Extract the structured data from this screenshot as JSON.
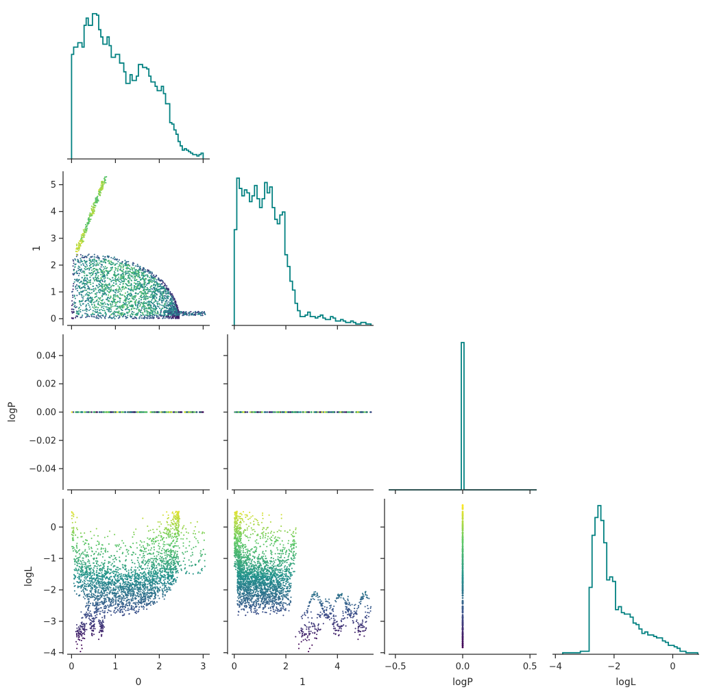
{
  "colors": {
    "histogram": "#008080",
    "axis": "#262626",
    "viridis": [
      "#440154",
      "#3b528b",
      "#21918c",
      "#5ec962",
      "#fde725"
    ]
  },
  "chart_data": [
    {
      "id": "hist-0",
      "type": "histogram",
      "variable": "0",
      "xlim": [
        -0.1,
        3.15
      ],
      "xticks": [
        0,
        1,
        2,
        3
      ],
      "bin_edges": [
        0.0,
        3.0
      ],
      "counts": [
        0.72,
        0.77,
        0.77,
        0.8,
        0.8,
        0.77,
        0.92,
        0.97,
        0.92,
        0.92,
        1.0,
        1.0,
        0.99,
        0.89,
        0.84,
        0.79,
        0.79,
        0.84,
        0.78,
        0.7,
        0.7,
        0.72,
        0.72,
        0.66,
        0.66,
        0.6,
        0.52,
        0.52,
        0.58,
        0.54,
        0.54,
        0.57,
        0.65,
        0.65,
        0.63,
        0.63,
        0.62,
        0.57,
        0.53,
        0.53,
        0.5,
        0.47,
        0.47,
        0.5,
        0.45,
        0.38,
        0.38,
        0.25,
        0.24,
        0.2,
        0.17,
        0.12,
        0.09,
        0.06,
        0.07,
        0.06,
        0.05,
        0.04,
        0.03,
        0.03,
        0.02,
        0.03,
        0.04
      ]
    },
    {
      "id": "scatter-1-vs-0",
      "type": "scatter",
      "x_variable": "0",
      "y_variable": "1",
      "xlim": [
        -0.1,
        3.15
      ],
      "ylim": [
        -0.25,
        5.5
      ],
      "xticks": [
        0,
        1,
        2,
        3
      ],
      "yticks": [
        0,
        1,
        2,
        3,
        4,
        5
      ],
      "ytick_labels": [
        "0",
        "1",
        "2",
        "3",
        "4",
        "5"
      ],
      "ylabel": "1",
      "points_estimated": 2400
    },
    {
      "id": "hist-1",
      "type": "histogram",
      "variable": "1",
      "xlim": [
        -0.1,
        5.4
      ],
      "xticks": [
        0,
        2,
        4
      ],
      "bin_edges": [
        0.0,
        5.3
      ],
      "counts": [
        0.65,
        1.0,
        0.93,
        0.88,
        0.92,
        0.9,
        0.84,
        0.88,
        0.95,
        0.86,
        0.8,
        0.86,
        0.97,
        0.9,
        0.94,
        0.8,
        0.72,
        0.69,
        0.75,
        0.77,
        0.48,
        0.4,
        0.3,
        0.24,
        0.15,
        0.1,
        0.06,
        0.06,
        0.07,
        0.09,
        0.06,
        0.06,
        0.05,
        0.06,
        0.07,
        0.05,
        0.04,
        0.04,
        0.06,
        0.05,
        0.03,
        0.03,
        0.04,
        0.03,
        0.02,
        0.02,
        0.03,
        0.02,
        0.01,
        0.01,
        0.02,
        0.02,
        0.01,
        0.01
      ]
    },
    {
      "id": "scatter-logP-vs-0",
      "type": "scatter",
      "x_variable": "0",
      "y_variable": "logP",
      "xlim": [
        -0.1,
        3.15
      ],
      "ylim": [
        -0.055,
        0.055
      ],
      "xticks": [
        0,
        1,
        2,
        3
      ],
      "yticks": [
        -0.04,
        -0.02,
        0.0,
        0.02,
        0.04
      ],
      "ytick_labels": [
        "−0.04",
        "−0.02",
        "0.00",
        "0.02",
        "0.04"
      ],
      "ylabel": "logP",
      "y_value": 0.0,
      "x_range": [
        0.0,
        3.0
      ]
    },
    {
      "id": "scatter-logP-vs-1",
      "type": "scatter",
      "x_variable": "1",
      "y_variable": "logP",
      "xlim": [
        -0.1,
        5.4
      ],
      "ylim": [
        -0.055,
        0.055
      ],
      "xticks": [
        0,
        2,
        4
      ],
      "yticks": [
        -0.04,
        -0.02,
        0.0,
        0.02,
        0.04
      ],
      "y_value": 0.0,
      "x_range": [
        0.0,
        5.3
      ]
    },
    {
      "id": "hist-logP",
      "type": "histogram",
      "variable": "logP",
      "xlim": [
        -0.55,
        0.55
      ],
      "xticks": [
        -0.5,
        0.0,
        0.5
      ],
      "bin_edges": [
        -0.01,
        0.01
      ],
      "counts": [
        1.0
      ]
    },
    {
      "id": "scatter-logL-vs-0",
      "type": "scatter",
      "x_variable": "0",
      "y_variable": "logL",
      "xlim": [
        -0.1,
        3.15
      ],
      "ylim": [
        -4.05,
        0.9
      ],
      "xticks": [
        0,
        1,
        2,
        3
      ],
      "xtick_labels": [
        "0",
        "1",
        "2",
        "3"
      ],
      "yticks": [
        -4,
        -3,
        -2,
        -1,
        0
      ],
      "ytick_labels": [
        "−4",
        "−3",
        "−2",
        "−1",
        "0"
      ],
      "xlabel": "0",
      "ylabel": "logL",
      "points_estimated": 2400
    },
    {
      "id": "scatter-logL-vs-1",
      "type": "scatter",
      "x_variable": "1",
      "y_variable": "logL",
      "xlim": [
        -0.1,
        5.4
      ],
      "ylim": [
        -4.05,
        0.9
      ],
      "xticks": [
        0,
        2,
        4
      ],
      "xtick_labels": [
        "0",
        "2",
        "4"
      ],
      "yticks": [
        -4,
        -3,
        -2,
        -1,
        0
      ],
      "xlabel": "1",
      "points_estimated": 2400
    },
    {
      "id": "scatter-logL-vs-logP",
      "type": "scatter",
      "x_variable": "logP",
      "y_variable": "logL",
      "xlim": [
        -0.55,
        0.55
      ],
      "ylim": [
        -4.05,
        0.9
      ],
      "xticks": [
        -0.5,
        0.0,
        0.5
      ],
      "xtick_labels": [
        "−0.5",
        "0.0",
        "0.5"
      ],
      "yticks": [
        -4,
        -3,
        -2,
        -1,
        0
      ],
      "xlabel": "logP",
      "x_value": 0.0,
      "y_range": [
        -3.85,
        0.7
      ]
    },
    {
      "id": "hist-logL",
      "type": "histogram",
      "variable": "logL",
      "xlim": [
        -4.1,
        0.9
      ],
      "xticks": [
        -4,
        -2,
        0
      ],
      "xtick_labels": [
        "−4",
        "−2",
        "0"
      ],
      "xlabel": "logL",
      "bin_edges": [
        -3.75,
        0.85
      ],
      "counts": [
        0.01,
        0.01,
        0.01,
        0.01,
        0.01,
        0.01,
        0.02,
        0.02,
        0.02,
        0.45,
        0.8,
        0.92,
        1.0,
        0.9,
        0.75,
        0.5,
        0.52,
        0.49,
        0.3,
        0.32,
        0.28,
        0.27,
        0.27,
        0.25,
        0.21,
        0.2,
        0.17,
        0.14,
        0.15,
        0.13,
        0.13,
        0.12,
        0.11,
        0.11,
        0.09,
        0.08,
        0.06,
        0.06,
        0.05,
        0.04,
        0.02,
        0.02,
        0.01,
        0.01,
        0.01,
        0.01
      ]
    }
  ]
}
